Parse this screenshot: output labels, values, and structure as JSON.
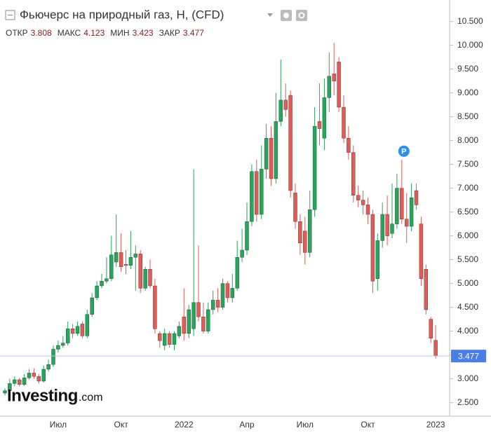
{
  "chart_data": {
    "type": "candlestick",
    "title": "Фьючерс на природный газ, H, (CFD)",
    "stats": [
      {
        "label": "ОТКР",
        "value": 3.808
      },
      {
        "label": "МАКС",
        "value": 4.123
      },
      {
        "label": "МИН",
        "value": 3.423
      },
      {
        "label": "ЗАКР",
        "value": 3.477
      }
    ],
    "last_price": 3.477,
    "marker": "P",
    "logo": "Investing",
    "logo_suffix": ".com",
    "up_color": "#26a65b",
    "down_color": "#e35b55",
    "ylim": [
      2.2,
      10.95
    ],
    "yticks": [
      {
        "value": 2.5,
        "label": "2.500"
      },
      {
        "value": 3,
        "label": "3.000"
      },
      {
        "value": 3.5,
        "label": "3.500"
      },
      {
        "value": 4,
        "label": "4.000"
      },
      {
        "value": 4.5,
        "label": "4.500"
      },
      {
        "value": 5,
        "label": "5.000"
      },
      {
        "value": 5.5,
        "label": "5.500"
      },
      {
        "value": 6,
        "label": "6.000"
      },
      {
        "value": 6.5,
        "label": "6.500"
      },
      {
        "value": 7,
        "label": "7.000"
      },
      {
        "value": 7.5,
        "label": "7.500"
      },
      {
        "value": 8,
        "label": "8.000"
      },
      {
        "value": 8.5,
        "label": "8.500"
      },
      {
        "value": 9,
        "label": "9.000"
      },
      {
        "value": 9.5,
        "label": "9.500"
      },
      {
        "value": 10,
        "label": "10.000"
      },
      {
        "value": 10.5,
        "label": "10.500"
      }
    ],
    "categories": [
      null,
      null,
      null,
      null,
      null,
      null,
      null,
      null,
      null,
      null,
      null,
      "Июл",
      null,
      null,
      null,
      null,
      null,
      null,
      null,
      null,
      null,
      null,
      null,
      null,
      "Окт",
      null,
      null,
      null,
      null,
      null,
      null,
      null,
      null,
      null,
      null,
      null,
      null,
      "2022",
      null,
      null,
      null,
      null,
      null,
      null,
      null,
      null,
      null,
      null,
      null,
      null,
      "Апр",
      null,
      null,
      null,
      null,
      null,
      null,
      null,
      null,
      null,
      null,
      null,
      "Июл",
      null,
      null,
      null,
      null,
      null,
      null,
      null,
      null,
      null,
      null,
      null,
      null,
      "Окт",
      null,
      null,
      null,
      null,
      null,
      null,
      null,
      null,
      null,
      null,
      null,
      null,
      null,
      "2023"
    ],
    "open": [
      2.7,
      2.75,
      2.9,
      2.98,
      2.88,
      3.02,
      3.12,
      3.05,
      2.95,
      3.2,
      3.3,
      3.62,
      3.7,
      3.75,
      4.05,
      3.95,
      4.15,
      3.9,
      4.35,
      4.7,
      4.95,
      5.05,
      5.1,
      5.45,
      5.65,
      5.4,
      5.38,
      5.55,
      5.62,
      4.9,
      5.3,
      4.95,
      3.95,
      3.7,
      3.95,
      3.72,
      3.9,
      4.3,
      3.95,
      4.05,
      4.6,
      4.3,
      4.0,
      4.45,
      4.65,
      4.5,
      5.0,
      4.7,
      4.9,
      5.55,
      5.7,
      6.3,
      7.35,
      6.45,
      7.4,
      8.05,
      7.2,
      8.4,
      8.85,
      8.95,
      6.9,
      6.3,
      6.1,
      5.65,
      6.55,
      8.4,
      8.05,
      8.9,
      9.4,
      9.65,
      8.7,
      8.05,
      7.75,
      6.85,
      6.75,
      6.65,
      6.45,
      5.1,
      5.9,
      6.45,
      6.05,
      6.25,
      7.0,
      6.35,
      6.2,
      6.95,
      6.25,
      5.3,
      4.25,
      3.808
    ],
    "close": [
      2.75,
      2.9,
      2.98,
      2.88,
      3.02,
      3.12,
      3.05,
      2.95,
      3.2,
      3.3,
      3.62,
      3.7,
      3.75,
      4.05,
      3.95,
      4.1,
      3.9,
      4.35,
      4.7,
      4.95,
      5.05,
      5.1,
      5.6,
      5.65,
      5.35,
      5.38,
      5.55,
      5.62,
      4.9,
      5.3,
      4.95,
      4.05,
      3.8,
      3.95,
      3.72,
      3.95,
      4.1,
      3.95,
      4.45,
      4.6,
      4.3,
      4.0,
      4.45,
      4.65,
      4.5,
      5.0,
      4.7,
      4.9,
      5.55,
      5.7,
      6.3,
      7.35,
      6.45,
      7.4,
      8.05,
      7.2,
      8.4,
      8.85,
      8.65,
      6.95,
      6.3,
      5.85,
      5.65,
      6.55,
      8.3,
      8.25,
      8.9,
      9.35,
      9.25,
      8.7,
      8.05,
      7.75,
      6.85,
      6.75,
      6.65,
      6.45,
      5.05,
      5.9,
      6.45,
      6.0,
      6.25,
      7.0,
      6.35,
      6.2,
      6.8,
      6.65,
      5.1,
      4.45,
      3.85,
      3.477
    ],
    "high": [
      2.8,
      3.0,
      3.05,
      3.02,
      3.1,
      3.2,
      3.22,
      3.1,
      3.28,
      3.4,
      3.7,
      3.8,
      3.9,
      4.2,
      4.15,
      4.2,
      4.2,
      4.45,
      4.8,
      5.05,
      5.2,
      5.55,
      6.0,
      6.45,
      6.05,
      5.7,
      6.1,
      5.8,
      5.7,
      5.35,
      5.5,
      5.1,
      4.0,
      4.05,
      4.0,
      4.0,
      4.2,
      4.9,
      4.55,
      7.4,
      5.8,
      4.6,
      4.6,
      4.85,
      4.9,
      5.1,
      5.05,
      5.2,
      5.9,
      6.15,
      6.7,
      7.5,
      7.6,
      7.9,
      8.35,
      8.3,
      9.0,
      9.7,
      9.2,
      9.05,
      7.1,
      6.45,
      6.4,
      6.95,
      8.7,
      9.2,
      9.3,
      9.85,
      10.05,
      9.75,
      8.95,
      8.3,
      7.9,
      7.05,
      6.95,
      6.8,
      6.55,
      6.05,
      6.7,
      6.85,
      7.1,
      7.3,
      7.6,
      6.9,
      7.1,
      7.1,
      6.4,
      5.4,
      4.3,
      4.123
    ],
    "low": [
      2.65,
      2.72,
      2.85,
      2.84,
      2.85,
      2.98,
      3.0,
      2.9,
      2.92,
      3.15,
      3.25,
      3.55,
      3.65,
      3.7,
      3.85,
      3.9,
      3.85,
      3.85,
      4.3,
      4.65,
      4.9,
      5.0,
      5.05,
      5.35,
      5.25,
      5.2,
      5.3,
      4.85,
      4.8,
      4.85,
      4.9,
      3.95,
      3.65,
      3.6,
      3.65,
      3.6,
      3.85,
      3.8,
      3.85,
      3.9,
      4.2,
      3.95,
      3.95,
      4.35,
      4.4,
      4.45,
      4.6,
      4.6,
      4.85,
      5.45,
      5.6,
      6.2,
      6.3,
      6.35,
      7.2,
      7.05,
      7.1,
      8.3,
      8.5,
      6.8,
      6.15,
      5.6,
      5.4,
      5.55,
      6.4,
      7.9,
      7.8,
      8.6,
      8.95,
      8.6,
      7.95,
      7.6,
      6.7,
      6.6,
      6.45,
      6.25,
      4.8,
      4.85,
      5.75,
      5.8,
      5.95,
      6.15,
      6.25,
      5.85,
      6.1,
      6.55,
      4.95,
      4.35,
      3.75,
      3.423
    ]
  }
}
